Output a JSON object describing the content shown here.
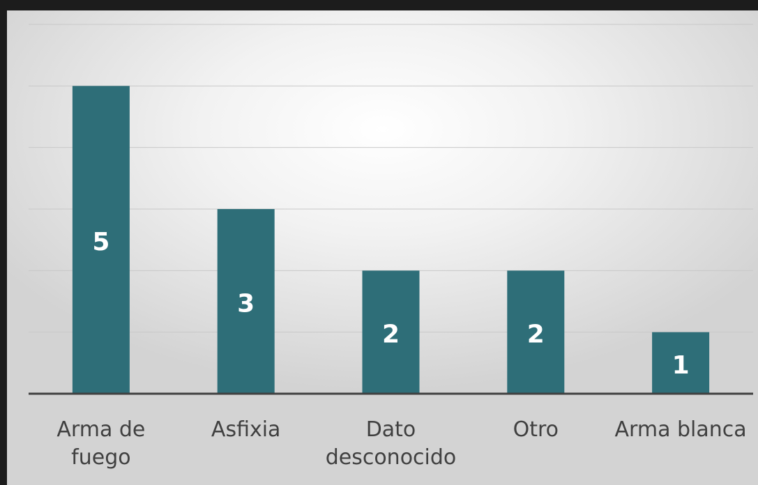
{
  "chart_data": {
    "type": "bar",
    "categories": [
      "Arma de fuego",
      "Asfixia",
      "Dato desconocido",
      "Otro",
      "Arma blanca"
    ],
    "values": [
      5,
      3,
      2,
      2,
      1
    ],
    "color": "#2e6e78",
    "ylim": [
      0,
      6
    ],
    "yticks": [
      0,
      1,
      2,
      3,
      4,
      5,
      6
    ],
    "grid": true
  }
}
